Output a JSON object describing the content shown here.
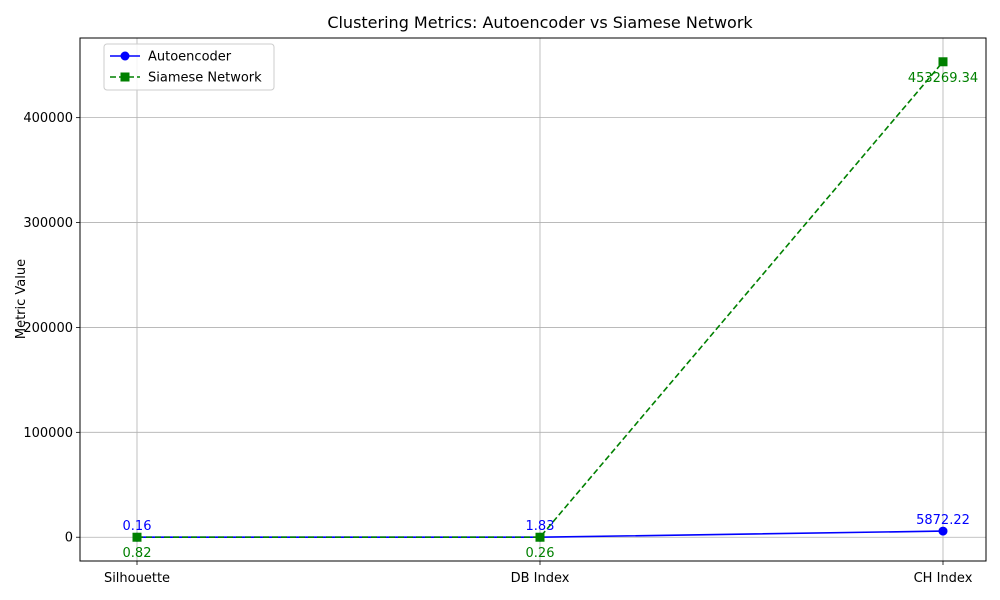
{
  "chart_data": {
    "type": "line",
    "title": "Clustering Metrics: Autoencoder vs Siamese Network",
    "xlabel": "",
    "ylabel": "Metric Value",
    "categories": [
      "Silhouette",
      "DB Index",
      "CH Index"
    ],
    "ylim": [
      -22665,
      475934
    ],
    "yticks": [
      0,
      100000,
      200000,
      300000,
      400000
    ],
    "grid": true,
    "legend_position": "top-left",
    "series": [
      {
        "name": "Autoencoder",
        "values": [
          0.16,
          1.83,
          5872.22
        ],
        "labels": [
          "0.16",
          "1.83",
          "5872.22"
        ],
        "color": "#0000ff",
        "line_style": "solid",
        "marker": "circle",
        "label_position": "above"
      },
      {
        "name": "Siamese Network",
        "values": [
          0.82,
          0.26,
          453269.34
        ],
        "labels": [
          "0.82",
          "0.26",
          "453269.34"
        ],
        "color": "#008000",
        "line_style": "dashed",
        "marker": "square",
        "label_position": "below"
      }
    ]
  }
}
